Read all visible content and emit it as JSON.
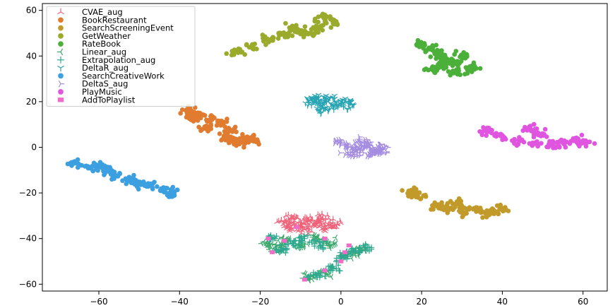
{
  "chart_data": {
    "type": "scatter",
    "title": "",
    "xlabel": "",
    "ylabel": "",
    "xlim": [
      -74,
      66
    ],
    "ylim": [
      -63,
      63
    ],
    "xticks": [
      -60,
      -40,
      -20,
      0,
      20,
      40,
      60
    ],
    "yticks": [
      -60,
      -40,
      -20,
      0,
      20,
      40,
      60
    ],
    "grid": false,
    "legend_position": "top-left",
    "series": [
      {
        "name": "CVAE_aug",
        "color": "#f0627a",
        "marker": "tri_up",
        "clusters": [
          {
            "points": [
              [
                -14,
                -33
              ],
              [
                -12,
                -31
              ],
              [
                -10,
                -34
              ],
              [
                -8,
                -32
              ],
              [
                -6,
                -33
              ],
              [
                -4,
                -35
              ],
              [
                -2,
                -34
              ],
              [
                -13,
                -35
              ],
              [
                -9,
                -36
              ],
              [
                -5,
                -31
              ]
            ]
          }
        ]
      },
      {
        "name": "BookRestaurant",
        "color": "#e07b2f",
        "marker": "circle",
        "clusters": [
          {
            "points": [
              [
                -38,
                16
              ],
              [
                -35,
                15
              ],
              [
                -32,
                13
              ],
              [
                -30,
                11
              ],
              [
                -28,
                8
              ],
              [
                -29,
                5
              ],
              [
                -27,
                3
              ],
              [
                -25,
                2
              ],
              [
                -23,
                4
              ],
              [
                -22,
                3
              ],
              [
                -33,
                9
              ],
              [
                -36,
                13
              ]
            ]
          }
        ]
      },
      {
        "name": "SearchScreeningEvent",
        "color": "#c19a2a",
        "marker": "circle",
        "clusters": [
          {
            "points": [
              [
                17,
                -20
              ],
              [
                19,
                -21
              ],
              [
                24,
                -26
              ],
              [
                27,
                -27
              ],
              [
                30,
                -28
              ],
              [
                33,
                -27
              ],
              [
                36,
                -29
              ],
              [
                38,
                -28
              ],
              [
                40,
                -27
              ],
              [
                29,
                -24
              ]
            ]
          }
        ]
      },
      {
        "name": "GetWeather",
        "color": "#9aaa2a",
        "marker": "circle",
        "clusters": [
          {
            "points": [
              [
                -26,
                42
              ],
              [
                -22,
                44
              ],
              [
                -18,
                47
              ],
              [
                -14,
                49
              ],
              [
                -10,
                51
              ],
              [
                -6,
                53
              ],
              [
                -2,
                55
              ],
              [
                -4,
                57
              ],
              [
                -8,
                50
              ],
              [
                -12,
                52
              ]
            ]
          }
        ]
      },
      {
        "name": "RateBook",
        "color": "#4bb03a",
        "marker": "circle",
        "clusters": [
          {
            "points": [
              [
                20,
                45
              ],
              [
                22,
                43
              ],
              [
                24,
                41
              ],
              [
                26,
                38
              ],
              [
                28,
                37
              ],
              [
                30,
                40
              ],
              [
                32,
                35
              ],
              [
                29,
                33
              ],
              [
                25,
                36
              ],
              [
                23,
                34
              ]
            ]
          }
        ]
      },
      {
        "name": "Linear_aug",
        "color": "#3aa86a",
        "marker": "tri_left",
        "clusters": [
          {
            "points": [
              [
                -18,
                -42
              ],
              [
                -16,
                -44
              ],
              [
                -14,
                -41
              ],
              [
                -10,
                -43
              ],
              [
                -6,
                -40
              ],
              [
                -3,
                -42
              ],
              [
                2,
                -47
              ],
              [
                5,
                -45
              ],
              [
                -4,
                -55
              ],
              [
                -8,
                -57
              ]
            ]
          }
        ]
      },
      {
        "name": "Extrapolation_aug",
        "color": "#2ea88f",
        "marker": "plus",
        "clusters": [
          {
            "points": [
              [
                -17,
                -40
              ],
              [
                -15,
                -45
              ],
              [
                -12,
                -42
              ],
              [
                -9,
                -40
              ],
              [
                -5,
                -43
              ],
              [
                0,
                -48
              ],
              [
                3,
                -46
              ],
              [
                6,
                -44
              ],
              [
                -2,
                -53
              ],
              [
                -6,
                -56
              ]
            ]
          }
        ]
      },
      {
        "name": "DeltaR_aug",
        "color": "#27a4b3",
        "marker": "tri_down",
        "clusters": [
          {
            "points": [
              [
                -7,
                20
              ],
              [
                -5,
                19
              ],
              [
                -3,
                21
              ],
              [
                -1,
                18
              ],
              [
                0,
                20
              ],
              [
                2,
                19
              ],
              [
                -4,
                17
              ],
              [
                -6,
                22
              ]
            ]
          }
        ]
      },
      {
        "name": "SearchCreativeWork",
        "color": "#3b9fe0",
        "marker": "circle",
        "clusters": [
          {
            "points": [
              [
                -66,
                -7
              ],
              [
                -62,
                -9
              ],
              [
                -58,
                -10
              ],
              [
                -56,
                -12
              ],
              [
                -52,
                -14
              ],
              [
                -50,
                -16
              ],
              [
                -47,
                -17
              ],
              [
                -44,
                -19
              ],
              [
                -42,
                -20
              ],
              [
                -60,
                -8
              ]
            ]
          }
        ]
      },
      {
        "name": "DeltaS_aug",
        "color": "#a48ce0",
        "marker": "tri_right",
        "clusters": [
          {
            "points": [
              [
                0,
                2
              ],
              [
                2,
                0
              ],
              [
                4,
                -1
              ],
              [
                6,
                1
              ],
              [
                8,
                0
              ],
              [
                9,
                -2
              ],
              [
                3,
                -3
              ],
              [
                5,
                2
              ],
              [
                7,
                -3
              ],
              [
                10,
                -1
              ]
            ]
          }
        ]
      },
      {
        "name": "PlayMusic",
        "color": "#e055e0",
        "marker": "circle",
        "clusters": [
          {
            "points": [
              [
                36,
                7
              ],
              [
                40,
                5
              ],
              [
                44,
                3
              ],
              [
                48,
                2
              ],
              [
                52,
                1
              ],
              [
                55,
                2
              ],
              [
                58,
                3
              ],
              [
                60,
                2
              ],
              [
                47,
                8
              ],
              [
                50,
                6
              ]
            ]
          }
        ]
      },
      {
        "name": "AddToPlaylist",
        "color": "#f06cc8",
        "marker": "square",
        "clusters": [
          {
            "points": [
              [
                -18,
                -40
              ],
              [
                -17,
                -46
              ],
              [
                -14,
                -41
              ],
              [
                -11,
                -35
              ],
              [
                -4,
                -40
              ],
              [
                2,
                -43
              ],
              [
                1,
                -46
              ],
              [
                0,
                -50
              ],
              [
                -4,
                -54
              ],
              [
                -9,
                -58
              ]
            ]
          }
        ]
      }
    ]
  }
}
